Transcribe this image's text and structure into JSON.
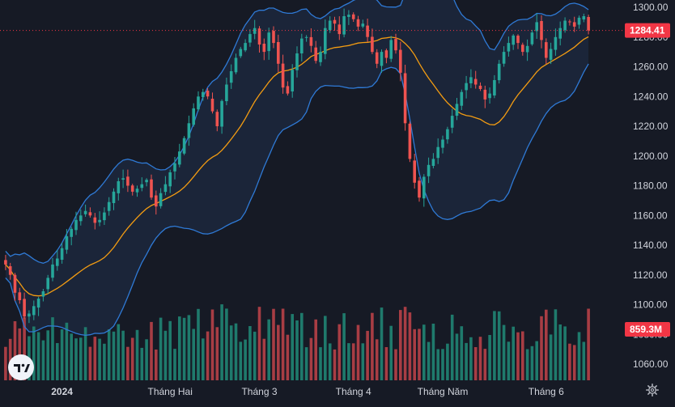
{
  "chart_data": {
    "type": "candlestick",
    "title": "",
    "price_axis": {
      "min": 1050,
      "max": 1305,
      "ticks": [
        "1300.00",
        "1280.00",
        "1260.00",
        "1240.00",
        "1220.00",
        "1200.00",
        "1180.00",
        "1160.00",
        "1140.00",
        "1120.00",
        "1100.00",
        "1080.00",
        "1060.00"
      ],
      "tick_values": [
        1300,
        1280,
        1260,
        1240,
        1220,
        1200,
        1180,
        1160,
        1140,
        1120,
        1100,
        1080,
        1060
      ]
    },
    "x_axis_labels": [
      {
        "label": "2024",
        "bar": 12,
        "bold": true
      },
      {
        "label": "Tháng Hai",
        "bar": 35
      },
      {
        "label": "Tháng 3",
        "bar": 54
      },
      {
        "label": "Tháng 4",
        "bar": 74
      },
      {
        "label": "Tháng Năm",
        "bar": 93
      },
      {
        "label": "Tháng 6",
        "bar": 115
      }
    ],
    "last_price_label": "1284.41",
    "last_volume_label": "859.3M",
    "colors": {
      "up": "#26a69a",
      "down": "#ef5350",
      "up_volume": "#1f7a6c",
      "down_volume": "#a83d44",
      "band": "#2f7ad6",
      "ma": "#f39c12",
      "background": "#161a25"
    },
    "closes": [
      1127,
      1120,
      1108,
      1103,
      1092,
      1094,
      1099,
      1104,
      1109,
      1118,
      1127,
      1131,
      1138,
      1146,
      1151,
      1157,
      1160,
      1163,
      1160,
      1155,
      1157,
      1162,
      1169,
      1176,
      1183,
      1185,
      1180,
      1176,
      1178,
      1181,
      1184,
      1172,
      1166,
      1175,
      1181,
      1189,
      1195,
      1203,
      1212,
      1222,
      1232,
      1240,
      1243,
      1240,
      1230,
      1220,
      1237,
      1248,
      1257,
      1266,
      1272,
      1276,
      1282,
      1286,
      1275,
      1270,
      1283,
      1276,
      1262,
      1246,
      1242,
      1258,
      1269,
      1279,
      1280,
      1274,
      1264,
      1270,
      1286,
      1291,
      1289,
      1282,
      1294,
      1295,
      1292,
      1287,
      1289,
      1280,
      1270,
      1262,
      1270,
      1266,
      1278,
      1271,
      1256,
      1222,
      1198,
      1182,
      1172,
      1186,
      1194,
      1198,
      1206,
      1211,
      1218,
      1227,
      1235,
      1243,
      1249,
      1253,
      1248,
      1245,
      1238,
      1242,
      1251,
      1262,
      1270,
      1276,
      1281,
      1276,
      1270,
      1274,
      1283,
      1290,
      1278,
      1266,
      1272,
      1280,
      1286,
      1291,
      1290,
      1287,
      1293,
      1294,
      1284.41
    ]
  }
}
